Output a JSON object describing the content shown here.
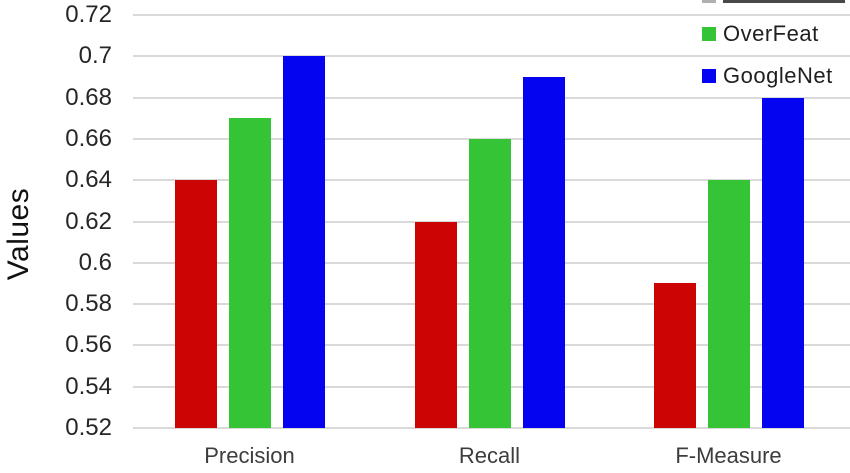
{
  "chart_data": {
    "type": "bar",
    "title": "",
    "xlabel": "",
    "ylabel": "Values",
    "categories": [
      "Precision",
      "Recall",
      "F-Measure"
    ],
    "series": [
      {
        "name": "",
        "clipped": true,
        "color": "#cc0404",
        "values": [
          0.64,
          0.62,
          0.59
        ]
      },
      {
        "name": "OverFeat",
        "clipped": false,
        "color": "#35c435",
        "values": [
          0.67,
          0.66,
          0.64
        ]
      },
      {
        "name": "GoogleNet",
        "clipped": false,
        "color": "#0404f0",
        "values": [
          0.7,
          0.69,
          0.68
        ]
      }
    ],
    "ylim": [
      0.52,
      0.72
    ],
    "ytick_values": [
      0.72,
      0.7,
      0.68,
      0.66,
      0.64,
      0.62,
      0.6,
      0.58,
      0.56,
      0.54,
      0.52
    ],
    "ytick_labels": [
      "0.72",
      "0.7",
      "0.68",
      "0.66",
      "0.64",
      "0.62",
      "0.6",
      "0.58",
      "0.56",
      "0.54",
      "0.52"
    ],
    "grid": true,
    "legend_position": "top-right",
    "gridline_color": "#d9d9d9",
    "background_color": "#ffffff"
  }
}
